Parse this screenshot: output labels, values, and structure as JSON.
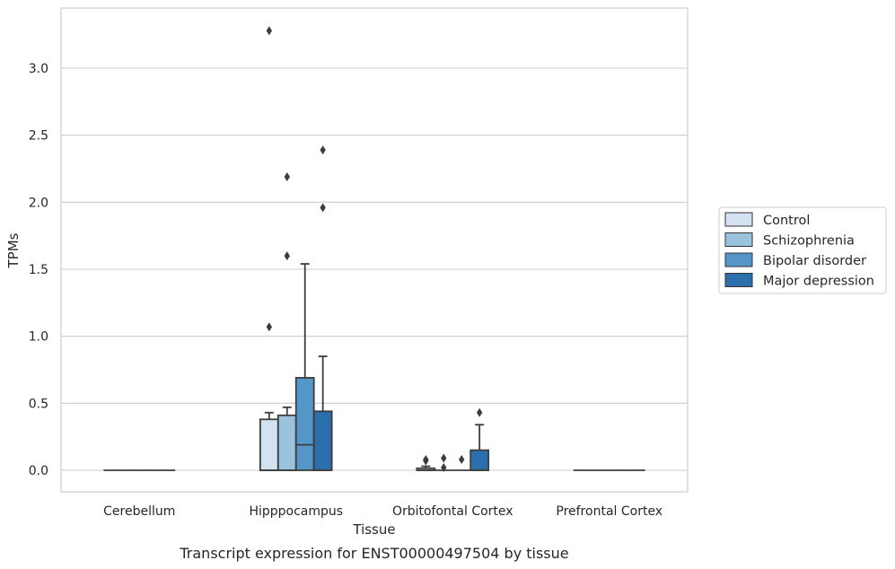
{
  "caption": "Transcript expression for ENST00000497504 by tissue",
  "chart_data": {
    "type": "box",
    "xlabel": "Tissue",
    "ylabel": "TPMs",
    "ylim": [
      -0.16,
      3.45
    ],
    "yticks": [
      "0.0",
      "0.5",
      "1.0",
      "1.5",
      "2.0",
      "2.5",
      "3.0"
    ],
    "grid": "horizontal",
    "legend_position": "right",
    "categories": [
      "Cerebellum",
      "Hipppocampus",
      "Orbitofontal Cortex",
      "Prefrontal Cortex"
    ],
    "series": [
      {
        "name": "Control",
        "color": "#d3e2f1",
        "boxes": [
          {
            "min": 0,
            "q1": 0,
            "median": 0,
            "q3": 0,
            "max": 0,
            "outliers": []
          },
          {
            "min": 0,
            "q1": 0,
            "median": 0,
            "q3": 0.38,
            "max": 0.43,
            "outliers": [
              1.07,
              3.28
            ]
          },
          {
            "min": 0,
            "q1": 0,
            "median": 0,
            "q3": 0.015,
            "max": 0.03,
            "outliers": [
              0.07,
              0.08
            ]
          },
          {
            "min": 0,
            "q1": 0,
            "median": 0,
            "q3": 0,
            "max": 0,
            "outliers": []
          }
        ]
      },
      {
        "name": "Schizophrenia",
        "color": "#9ac4de",
        "boxes": [
          {
            "min": 0,
            "q1": 0,
            "median": 0,
            "q3": 0,
            "max": 0,
            "outliers": []
          },
          {
            "min": 0,
            "q1": 0,
            "median": 0,
            "q3": 0.41,
            "max": 0.47,
            "outliers": [
              1.6,
              2.19
            ]
          },
          {
            "min": 0,
            "q1": 0,
            "median": 0,
            "q3": 0,
            "max": 0,
            "outliers": [
              0.02,
              0.09
            ]
          },
          {
            "min": 0,
            "q1": 0,
            "median": 0,
            "q3": 0,
            "max": 0,
            "outliers": []
          }
        ]
      },
      {
        "name": "Bipolar disorder",
        "color": "#5496c7",
        "boxes": [
          {
            "min": 0,
            "q1": 0,
            "median": 0,
            "q3": 0,
            "max": 0,
            "outliers": []
          },
          {
            "min": 0,
            "q1": 0,
            "median": 0.19,
            "q3": 0.69,
            "max": 1.54,
            "outliers": []
          },
          {
            "min": 0,
            "q1": 0,
            "median": 0,
            "q3": 0,
            "max": 0,
            "outliers": [
              0.08
            ]
          },
          {
            "min": 0,
            "q1": 0,
            "median": 0,
            "q3": 0,
            "max": 0,
            "outliers": []
          }
        ]
      },
      {
        "name": "Major depression",
        "color": "#2b6fad",
        "boxes": [
          {
            "min": 0,
            "q1": 0,
            "median": 0,
            "q3": 0,
            "max": 0,
            "outliers": []
          },
          {
            "min": 0,
            "q1": 0,
            "median": 0,
            "q3": 0.44,
            "max": 0.85,
            "outliers": [
              1.96,
              2.39
            ]
          },
          {
            "min": 0,
            "q1": 0,
            "median": 0,
            "q3": 0.15,
            "max": 0.34,
            "outliers": [
              0.43
            ]
          },
          {
            "min": 0,
            "q1": 0,
            "median": 0,
            "q3": 0,
            "max": 0,
            "outliers": []
          }
        ]
      }
    ]
  }
}
